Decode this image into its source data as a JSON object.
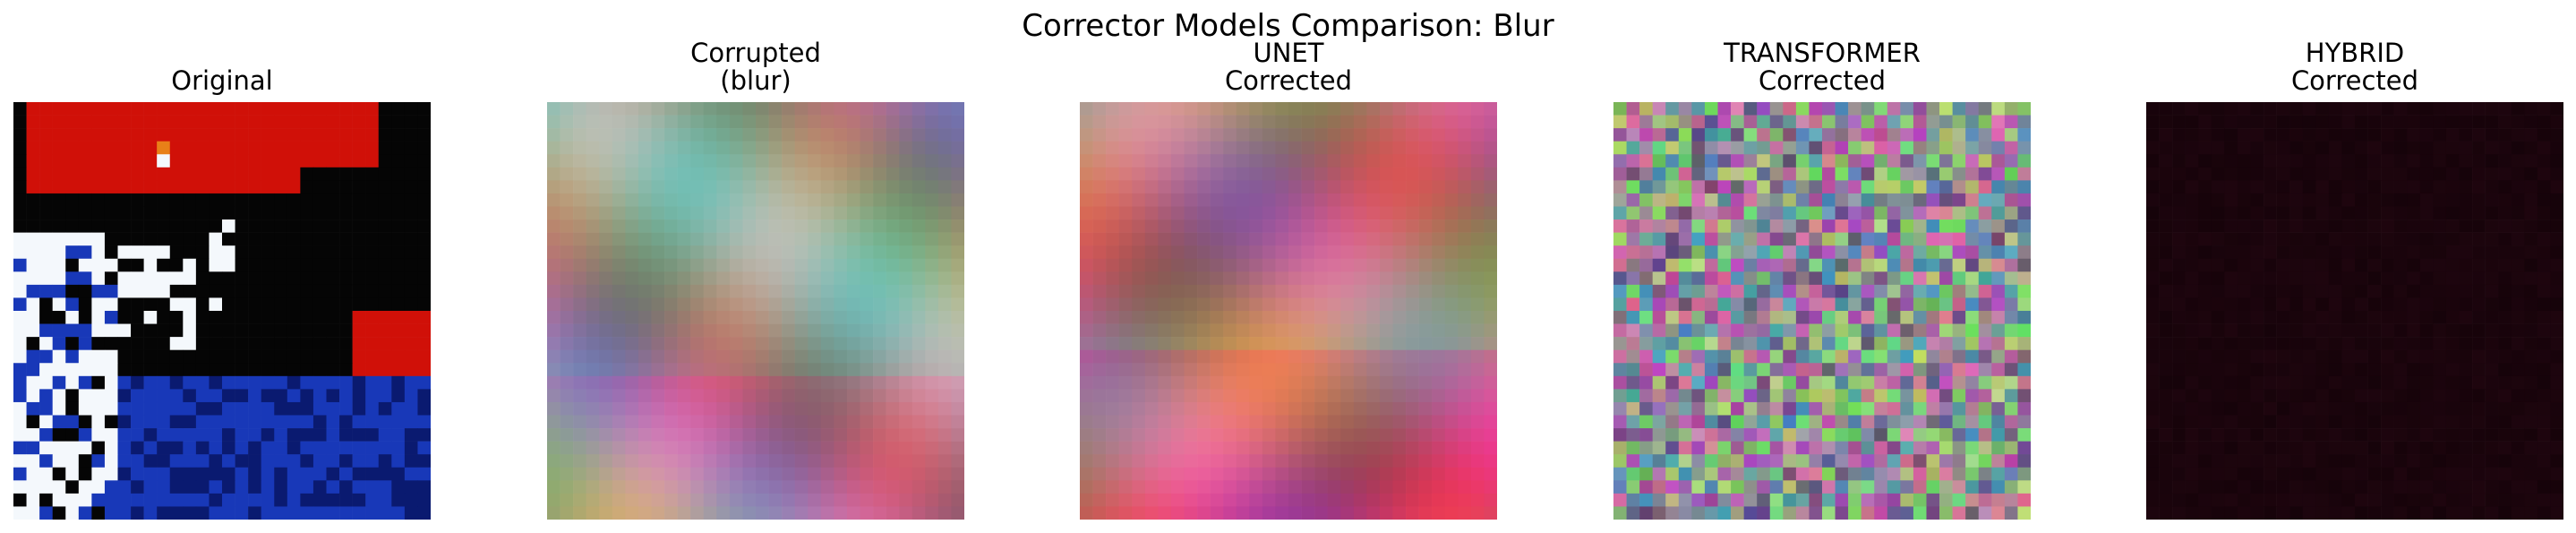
{
  "figure": {
    "title": "Corrector Models Comparison: Blur"
  },
  "panels": [
    {
      "key": "original",
      "title": "Original",
      "image_icon": "original-cifar-image",
      "palette": {
        "red": "#d01008",
        "black": "#050505",
        "white": "#f4f8fc",
        "blue": "#1838b8",
        "navy": "#0a1a70",
        "orange": "#e88018"
      }
    },
    {
      "key": "corrupted",
      "title": "Corrupted\n(blur)",
      "image_icon": "blurred-image"
    },
    {
      "key": "unet",
      "title": "UNET\nCorrected",
      "image_icon": "unet-corrected-image"
    },
    {
      "key": "transformer",
      "title": "TRANSFORMER\nCorrected",
      "image_icon": "transformer-corrected-image"
    },
    {
      "key": "hybrid",
      "title": "HYBRID\nCorrected",
      "image_icon": "hybrid-corrected-image",
      "base_color": "#1a040c"
    }
  ]
}
